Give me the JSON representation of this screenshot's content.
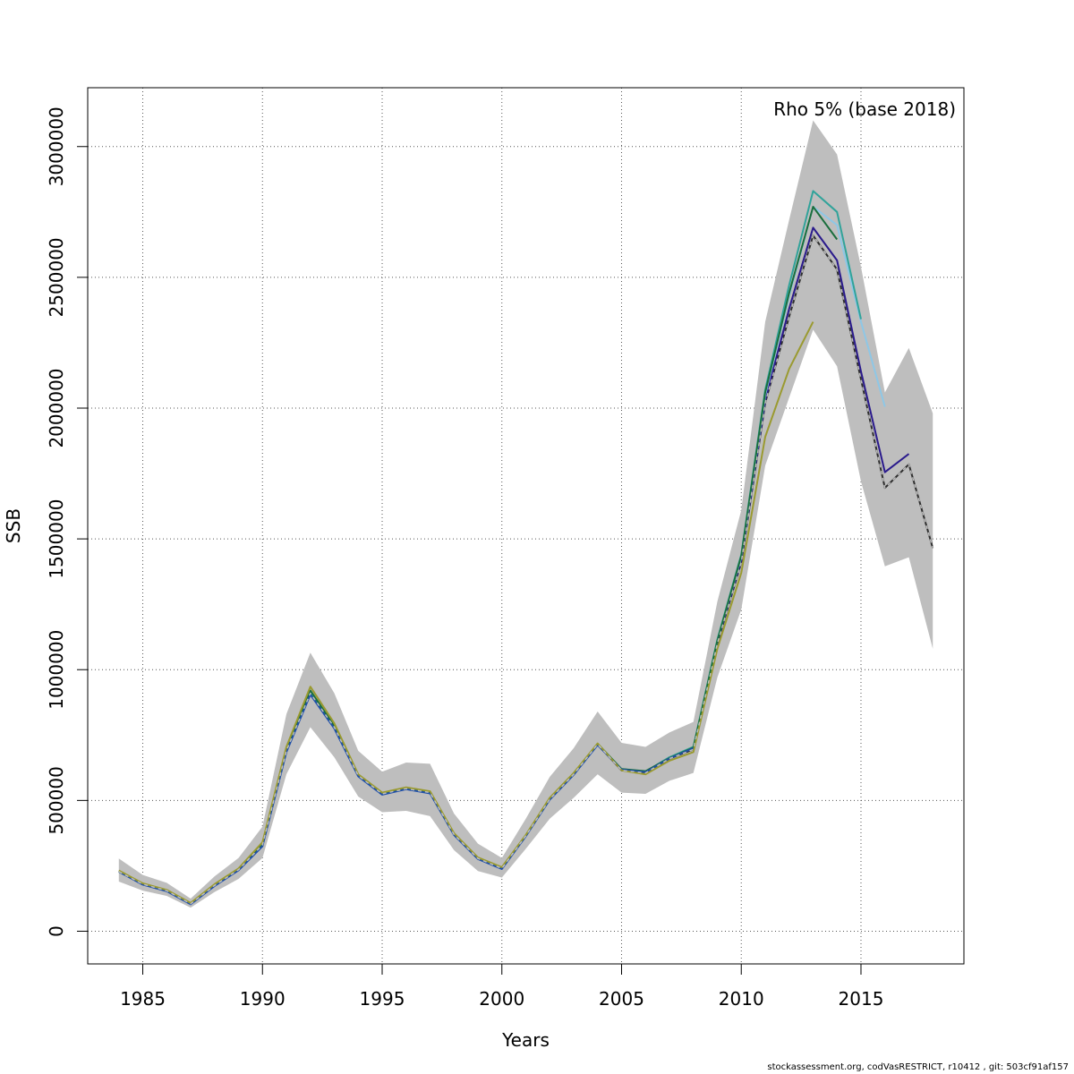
{
  "chart_data": {
    "type": "line",
    "title": "",
    "xlabel": "Years",
    "ylabel": "SSB",
    "annotation": "Rho 5% (base 2018)",
    "footer": "stockassessment.org, codVasRESTRICT, r10412 , git: 503cf91af157",
    "xlim": [
      1982.7,
      2019.3
    ],
    "ylim": [
      -125000,
      3225000
    ],
    "xticks": [
      1985,
      1990,
      1995,
      2000,
      2005,
      2010,
      2015
    ],
    "yticks": [
      0,
      500000,
      1000000,
      1500000,
      2000000,
      2500000,
      3000000
    ],
    "grid": true,
    "confidence_band": {
      "x": [
        1984,
        1985,
        1986,
        1987,
        1988,
        1989,
        1990,
        1991,
        1992,
        1993,
        1994,
        1995,
        1996,
        1997,
        1998,
        1999,
        2000,
        2001,
        2002,
        2003,
        2004,
        2005,
        2006,
        2007,
        2008,
        2009,
        2010,
        2011,
        2012,
        2013,
        2014,
        2015,
        2016,
        2017,
        2018
      ],
      "upper": [
        278000,
        215000,
        185000,
        125000,
        210000,
        280000,
        400000,
        830000,
        1065000,
        910000,
        690000,
        610000,
        645000,
        640000,
        450000,
        335000,
        280000,
        430000,
        590000,
        700000,
        840000,
        720000,
        705000,
        760000,
        800000,
        1260000,
        1610000,
        2330000,
        2720000,
        3100000,
        2970000,
        2540000,
        2060000,
        2230000,
        1980000
      ],
      "lower": [
        190000,
        155000,
        135000,
        90000,
        150000,
        200000,
        280000,
        600000,
        780000,
        665000,
        515000,
        455000,
        460000,
        440000,
        310000,
        230000,
        205000,
        315000,
        430000,
        510000,
        600000,
        530000,
        525000,
        575000,
        605000,
        970000,
        1230000,
        1780000,
        2040000,
        2300000,
        2160000,
        1720000,
        1395000,
        1430000,
        1080000
      ]
    },
    "series": [
      {
        "name": "",
        "color": "#2e2e2e",
        "dashed": false,
        "x": [
          1984,
          1985,
          1986,
          1987,
          1988,
          1989,
          1990,
          1991,
          1992,
          1993,
          1994,
          1995,
          1996,
          1997,
          1998,
          1999,
          2000,
          2001,
          2002,
          2003,
          2004,
          2005,
          2006,
          2007,
          2008,
          2009,
          2010,
          2011,
          2012,
          2013,
          2014,
          2015,
          2016,
          2017,
          2018
        ],
        "values": [
          228000,
          180000,
          155000,
          105000,
          175000,
          235000,
          330000,
          690000,
          910000,
          780000,
          595000,
          525000,
          545000,
          530000,
          370000,
          278000,
          240000,
          365000,
          505000,
          600000,
          715000,
          615000,
          605000,
          660000,
          695000,
          1100000,
          1410000,
          2020000,
          2350000,
          2660000,
          2530000,
          2110000,
          1695000,
          1785000,
          1465000
        ]
      },
      {
        "name": "",
        "color": "#2a1a8c",
        "dashed": false,
        "x": [
          1984,
          1985,
          1986,
          1987,
          1988,
          1989,
          1990,
          1991,
          1992,
          1993,
          1994,
          1995,
          1996,
          1997,
          1998,
          1999,
          2000,
          2001,
          2002,
          2003,
          2004,
          2005,
          2006,
          2007,
          2008,
          2009,
          2010,
          2011,
          2012,
          2013,
          2014,
          2015,
          2016,
          2017
        ],
        "values": [
          228000,
          180000,
          155000,
          105000,
          175000,
          235000,
          330000,
          690000,
          910000,
          780000,
          595000,
          525000,
          545000,
          530000,
          370000,
          278000,
          240000,
          365000,
          505000,
          600000,
          715000,
          615000,
          610000,
          665000,
          700000,
          1105000,
          1420000,
          2030000,
          2380000,
          2690000,
          2565000,
          2140000,
          1755000,
          1825000
        ]
      },
      {
        "name": "",
        "color": "#8ec7e6",
        "dashed": false,
        "x": [
          1984,
          1985,
          1986,
          1987,
          1988,
          1989,
          1990,
          1991,
          1992,
          1993,
          1994,
          1995,
          1996,
          1997,
          1998,
          1999,
          2000,
          2001,
          2002,
          2003,
          2004,
          2005,
          2006,
          2007,
          2008,
          2009,
          2010,
          2011,
          2012,
          2013,
          2014,
          2015,
          2016
        ],
        "values": [
          228000,
          180000,
          155000,
          105000,
          175000,
          235000,
          330000,
          690000,
          910000,
          780000,
          595000,
          525000,
          545000,
          530000,
          370000,
          278000,
          240000,
          365000,
          505000,
          600000,
          715000,
          620000,
          610000,
          665000,
          700000,
          1110000,
          1430000,
          2050000,
          2430000,
          2770000,
          2700000,
          2330000,
          2005000
        ]
      },
      {
        "name": "",
        "color": "#30a39a",
        "dashed": false,
        "x": [
          1984,
          1985,
          1986,
          1987,
          1988,
          1989,
          1990,
          1991,
          1992,
          1993,
          1994,
          1995,
          1996,
          1997,
          1998,
          1999,
          2000,
          2001,
          2002,
          2003,
          2004,
          2005,
          2006,
          2007,
          2008,
          2009,
          2010,
          2011,
          2012,
          2013,
          2014,
          2015
        ],
        "values": [
          228000,
          180000,
          155000,
          105000,
          175000,
          235000,
          330000,
          690000,
          910000,
          780000,
          595000,
          525000,
          545000,
          530000,
          370000,
          278000,
          240000,
          365000,
          505000,
          600000,
          715000,
          620000,
          610000,
          665000,
          705000,
          1115000,
          1440000,
          2070000,
          2470000,
          2830000,
          2750000,
          2340000
        ]
      },
      {
        "name": "",
        "color": "#1a6e3c",
        "dashed": false,
        "x": [
          1984,
          1985,
          1986,
          1987,
          1988,
          1989,
          1990,
          1991,
          1992,
          1993,
          1994,
          1995,
          1996,
          1997,
          1998,
          1999,
          2000,
          2001,
          2002,
          2003,
          2004,
          2005,
          2006,
          2007,
          2008,
          2009,
          2010,
          2011,
          2012,
          2013,
          2014
        ],
        "values": [
          228000,
          180000,
          155000,
          105000,
          175000,
          235000,
          330000,
          695000,
          920000,
          785000,
          598000,
          528000,
          546000,
          532000,
          372000,
          280000,
          242000,
          367000,
          507000,
          602000,
          717000,
          620000,
          612000,
          662000,
          702000,
          1110000,
          1435000,
          2060000,
          2440000,
          2770000,
          2645000
        ]
      },
      {
        "name": "",
        "color": "#1f4fa8",
        "dashed": false,
        "x": [
          1984,
          1985,
          1986,
          1987,
          1988,
          1989,
          1990,
          1991,
          1992,
          1993,
          1994,
          1995,
          1996,
          1997,
          1998,
          1999,
          2000,
          2001,
          2002,
          2003,
          2004,
          2005,
          2006,
          2007,
          2008
        ],
        "values": [
          228000,
          178000,
          153000,
          103000,
          173000,
          233000,
          325000,
          685000,
          905000,
          775000,
          592000,
          522000,
          543000,
          527000,
          368000,
          276000,
          238000,
          363000,
          503000,
          598000,
          712000,
          618000,
          608000,
          660000,
          700000
        ]
      },
      {
        "name": "",
        "color": "#9a9a30",
        "dashed": false,
        "x": [
          1984,
          1985,
          1986,
          1987,
          1988,
          1989,
          1990,
          1991,
          1992,
          1993,
          1994,
          1995,
          1996,
          1997,
          1998,
          1999,
          2000,
          2001,
          2002,
          2003,
          2004,
          2005,
          2006,
          2007,
          2008,
          2009,
          2010,
          2011,
          2012,
          2013
        ],
        "values": [
          232000,
          183000,
          158000,
          108000,
          180000,
          240000,
          340000,
          705000,
          935000,
          795000,
          600000,
          530000,
          550000,
          535000,
          375000,
          282000,
          245000,
          368000,
          510000,
          605000,
          718000,
          615000,
          600000,
          652000,
          685000,
          1080000,
          1370000,
          1890000,
          2150000,
          2330000
        ]
      },
      {
        "name": "",
        "color": "#bdbdbd",
        "dashed": true,
        "x": [
          1984,
          1985,
          1986,
          1987,
          1988,
          1989,
          1990,
          1991,
          1992,
          1993,
          1994,
          1995,
          1996,
          1997,
          1998,
          1999,
          2000,
          2001,
          2002,
          2003,
          2004,
          2005,
          2006,
          2007,
          2008,
          2009,
          2010,
          2011,
          2012,
          2013,
          2014,
          2015,
          2016,
          2017,
          2018
        ],
        "values": [
          228000,
          180000,
          155000,
          105000,
          175000,
          235000,
          330000,
          690000,
          910000,
          780000,
          595000,
          525000,
          545000,
          530000,
          370000,
          278000,
          240000,
          365000,
          505000,
          600000,
          715000,
          615000,
          605000,
          660000,
          695000,
          1100000,
          1410000,
          2020000,
          2350000,
          2660000,
          2530000,
          2110000,
          1695000,
          1785000,
          1465000
        ]
      }
    ]
  }
}
